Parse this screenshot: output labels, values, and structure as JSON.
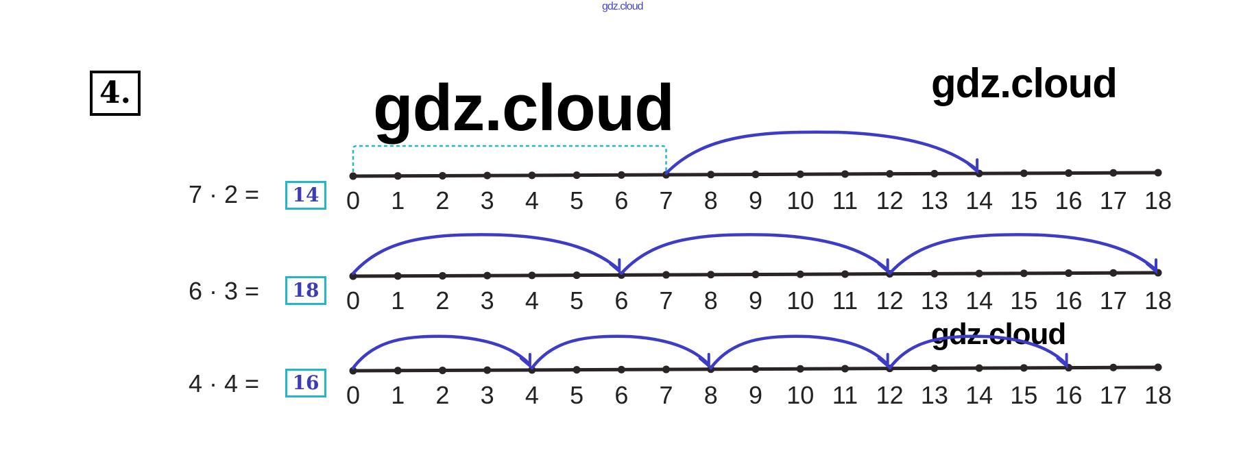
{
  "watermarks": [
    "gdz.cloud",
    "gdz.cloud",
    "gdz.cloud",
    "gdz.cloud"
  ],
  "task_number": "4.",
  "colors": {
    "jump_arc": "#3c3cc8",
    "answer_box": "#20b8c8",
    "answer_text": "#3c3cb4",
    "line": "#2a2424",
    "bracket": "#20b8c8"
  },
  "number_line": {
    "min": 0,
    "max": 18,
    "labels": [
      "0",
      "1",
      "2",
      "3",
      "4",
      "5",
      "6",
      "7",
      "8",
      "9",
      "10",
      "11",
      "12",
      "13",
      "14",
      "15",
      "16",
      "17",
      "18"
    ]
  },
  "exercises": [
    {
      "expression": "7 · 2 =",
      "answer": "14",
      "jumps": [
        [
          7,
          14
        ]
      ],
      "dashed_bracket": [
        0,
        7
      ]
    },
    {
      "expression": "6 · 3 =",
      "answer": "18",
      "jumps": [
        [
          0,
          6
        ],
        [
          6,
          12
        ],
        [
          12,
          18
        ]
      ]
    },
    {
      "expression": "4 · 4 =",
      "answer": "16",
      "jumps": [
        [
          0,
          4
        ],
        [
          4,
          8
        ],
        [
          8,
          12
        ],
        [
          12,
          16
        ]
      ]
    }
  ]
}
